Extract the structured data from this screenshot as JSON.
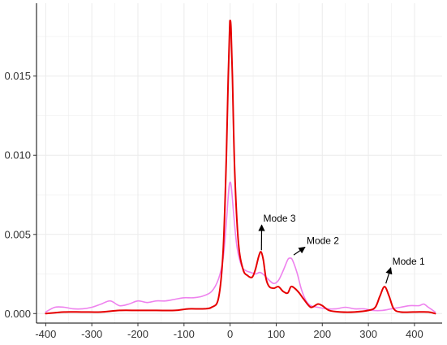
{
  "chart_data": {
    "type": "line",
    "title": "",
    "xlabel": "",
    "ylabel": "",
    "xlim": [
      -420,
      460
    ],
    "ylim": [
      -0.0006,
      0.0196
    ],
    "x_ticks": [
      -400,
      -300,
      -200,
      -100,
      0,
      100,
      200,
      300,
      400
    ],
    "x_tick_labels": [
      "-400",
      "-300",
      "-200",
      "-100",
      "0",
      "100",
      "200",
      "300",
      "400"
    ],
    "y_ticks": [
      0.0,
      0.005,
      0.01,
      0.015
    ],
    "y_tick_labels": [
      "0.000",
      "0.005",
      "0.010",
      "0.015"
    ],
    "grid": true,
    "legend": "none",
    "series": [
      {
        "color": "#e5139b",
        "line_color": "#ee82ee",
        "points": [
          [
            -400,
            0.0001
          ],
          [
            -380,
            0.0004
          ],
          [
            -360,
            0.0004
          ],
          [
            -340,
            0.0003
          ],
          [
            -320,
            0.0003
          ],
          [
            -300,
            0.0004
          ],
          [
            -280,
            0.0006
          ],
          [
            -260,
            0.0008
          ],
          [
            -240,
            0.0005
          ],
          [
            -220,
            0.0006
          ],
          [
            -200,
            0.0008
          ],
          [
            -180,
            0.0007
          ],
          [
            -160,
            0.0008
          ],
          [
            -140,
            0.0008
          ],
          [
            -120,
            0.0009
          ],
          [
            -100,
            0.001
          ],
          [
            -80,
            0.001
          ],
          [
            -60,
            0.0011
          ],
          [
            -40,
            0.0014
          ],
          [
            -25,
            0.0022
          ],
          [
            -15,
            0.0035
          ],
          [
            -8,
            0.0058
          ],
          [
            -3,
            0.0078
          ],
          [
            0,
            0.0083
          ],
          [
            3,
            0.0079
          ],
          [
            8,
            0.0062
          ],
          [
            15,
            0.0042
          ],
          [
            25,
            0.003
          ],
          [
            35,
            0.0027
          ],
          [
            45,
            0.0026
          ],
          [
            55,
            0.0025
          ],
          [
            65,
            0.0026
          ],
          [
            75,
            0.0024
          ],
          [
            85,
            0.0021
          ],
          [
            95,
            0.0019
          ],
          [
            105,
            0.0021
          ],
          [
            115,
            0.0027
          ],
          [
            125,
            0.0034
          ],
          [
            130,
            0.0035
          ],
          [
            135,
            0.0034
          ],
          [
            145,
            0.0026
          ],
          [
            155,
            0.0015
          ],
          [
            165,
            0.0008
          ],
          [
            175,
            0.0005
          ],
          [
            190,
            0.0004
          ],
          [
            210,
            0.0003
          ],
          [
            230,
            0.0003
          ],
          [
            250,
            0.0004
          ],
          [
            270,
            0.0003
          ],
          [
            290,
            0.0003
          ],
          [
            310,
            0.0002
          ],
          [
            330,
            0.0002
          ],
          [
            350,
            0.0003
          ],
          [
            370,
            0.0004
          ],
          [
            390,
            0.0005
          ],
          [
            410,
            0.0005
          ],
          [
            420,
            0.0006
          ],
          [
            430,
            0.0004
          ],
          [
            445,
            0.0001
          ]
        ]
      },
      {
        "color": "#e00000",
        "line_color": "#e60000",
        "points": [
          [
            -400,
            0.0
          ],
          [
            -360,
            0.0001
          ],
          [
            -320,
            0.0001
          ],
          [
            -280,
            0.0001
          ],
          [
            -240,
            0.0002
          ],
          [
            -200,
            0.0002
          ],
          [
            -160,
            0.0002
          ],
          [
            -120,
            0.0002
          ],
          [
            -90,
            0.0003
          ],
          [
            -60,
            0.0003
          ],
          [
            -40,
            0.0004
          ],
          [
            -25,
            0.001
          ],
          [
            -15,
            0.004
          ],
          [
            -8,
            0.01
          ],
          [
            -4,
            0.015
          ],
          [
            -1,
            0.018
          ],
          [
            0,
            0.0185
          ],
          [
            2,
            0.018
          ],
          [
            5,
            0.015
          ],
          [
            10,
            0.009
          ],
          [
            18,
            0.0045
          ],
          [
            28,
            0.0028
          ],
          [
            38,
            0.0024
          ],
          [
            48,
            0.0023
          ],
          [
            55,
            0.0028
          ],
          [
            62,
            0.0036
          ],
          [
            67,
            0.0039
          ],
          [
            72,
            0.0034
          ],
          [
            78,
            0.0022
          ],
          [
            85,
            0.0017
          ],
          [
            95,
            0.0016
          ],
          [
            105,
            0.0017
          ],
          [
            115,
            0.0014
          ],
          [
            125,
            0.0013
          ],
          [
            132,
            0.0017
          ],
          [
            140,
            0.0016
          ],
          [
            150,
            0.0013
          ],
          [
            160,
            0.0009
          ],
          [
            175,
            0.0004
          ],
          [
            190,
            0.0006
          ],
          [
            200,
            0.0005
          ],
          [
            215,
            0.0002
          ],
          [
            240,
            0.0001
          ],
          [
            270,
            0.0001
          ],
          [
            300,
            0.0002
          ],
          [
            315,
            0.0004
          ],
          [
            325,
            0.0011
          ],
          [
            335,
            0.0017
          ],
          [
            345,
            0.0011
          ],
          [
            355,
            0.0003
          ],
          [
            370,
            0.0001
          ],
          [
            400,
            0.0001
          ],
          [
            430,
            0.0001
          ],
          [
            445,
            0.0
          ]
        ]
      }
    ],
    "annotations": [
      {
        "label": "Mode 3",
        "target": [
          68,
          0.004
        ],
        "label_pos": [
          72,
          0.0058
        ]
      },
      {
        "label": "Mode 2",
        "target": [
          138,
          0.0037
        ],
        "label_pos": [
          166,
          0.0044
        ]
      },
      {
        "label": "Mode 1",
        "target": [
          338,
          0.0019
        ],
        "label_pos": [
          352,
          0.0031
        ]
      }
    ],
    "colors": {
      "background": "#ffffff",
      "grid": "#ebebeb",
      "axis": "#000000",
      "arrow": "#000000"
    }
  }
}
